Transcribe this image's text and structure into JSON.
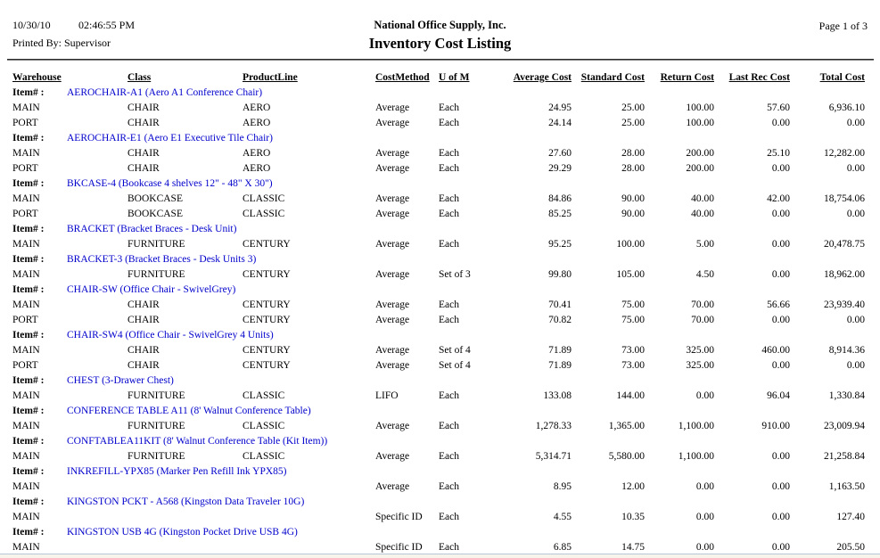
{
  "header": {
    "date": "10/30/10",
    "time": "02:46:55 PM",
    "printed_by": "Printed By: Supervisor",
    "company": "National Office Supply, Inc.",
    "title": "Inventory Cost Listing",
    "page": "Page 1 of 3"
  },
  "colors": {
    "item_link_blue": "#0000CC",
    "divider_gray": "#808080",
    "footer_line": "#b9c6d6",
    "footer_bg": "#f7f4ec"
  },
  "table": {
    "item_label": "Item# :",
    "columns": [
      "Warehouse",
      "Class",
      "ProductLine",
      "CostMethod",
      "U of M",
      "Average Cost",
      "Standard Cost",
      "Return Cost",
      "Last Rec Cost",
      "Total Cost"
    ],
    "groups": [
      {
        "item": "AEROCHAIR-A1 (Aero A1 Conference Chair)",
        "rows": [
          [
            "MAIN",
            "CHAIR",
            "AERO",
            "Average",
            "Each",
            "24.95",
            "25.00",
            "100.00",
            "57.60",
            "6,936.10"
          ],
          [
            "PORT",
            "CHAIR",
            "AERO",
            "Average",
            "Each",
            "24.14",
            "25.00",
            "100.00",
            "0.00",
            "0.00"
          ]
        ]
      },
      {
        "item": "AEROCHAIR-E1 (Aero E1 Executive Tile Chair)",
        "rows": [
          [
            "MAIN",
            "CHAIR",
            "AERO",
            "Average",
            "Each",
            "27.60",
            "28.00",
            "200.00",
            "25.10",
            "12,282.00"
          ],
          [
            "PORT",
            "CHAIR",
            "AERO",
            "Average",
            "Each",
            "29.29",
            "28.00",
            "200.00",
            "0.00",
            "0.00"
          ]
        ]
      },
      {
        "item": "BKCASE-4 (Bookcase 4 shelves 12\" - 48\" X 30\")",
        "rows": [
          [
            "MAIN",
            "BOOKCASE",
            "CLASSIC",
            "Average",
            "Each",
            "84.86",
            "90.00",
            "40.00",
            "42.00",
            "18,754.06"
          ],
          [
            "PORT",
            "BOOKCASE",
            "CLASSIC",
            "Average",
            "Each",
            "85.25",
            "90.00",
            "40.00",
            "0.00",
            "0.00"
          ]
        ]
      },
      {
        "item": "BRACKET (Bracket Braces - Desk Unit)",
        "rows": [
          [
            "MAIN",
            "FURNITURE",
            "CENTURY",
            "Average",
            "Each",
            "95.25",
            "100.00",
            "5.00",
            "0.00",
            "20,478.75"
          ]
        ]
      },
      {
        "item": "BRACKET-3 (Bracket Braces - Desk Units 3)",
        "rows": [
          [
            "MAIN",
            "FURNITURE",
            "CENTURY",
            "Average",
            "Set of 3",
            "99.80",
            "105.00",
            "4.50",
            "0.00",
            "18,962.00"
          ]
        ]
      },
      {
        "item": "CHAIR-SW (Office Chair - SwivelGrey)",
        "rows": [
          [
            "MAIN",
            "CHAIR",
            "CENTURY",
            "Average",
            "Each",
            "70.41",
            "75.00",
            "70.00",
            "56.66",
            "23,939.40"
          ],
          [
            "PORT",
            "CHAIR",
            "CENTURY",
            "Average",
            "Each",
            "70.82",
            "75.00",
            "70.00",
            "0.00",
            "0.00"
          ]
        ]
      },
      {
        "item": "CHAIR-SW4 (Office Chair - SwivelGrey 4 Units)",
        "rows": [
          [
            "MAIN",
            "CHAIR",
            "CENTURY",
            "Average",
            "Set of 4",
            "71.89",
            "73.00",
            "325.00",
            "460.00",
            "8,914.36"
          ],
          [
            "PORT",
            "CHAIR",
            "CENTURY",
            "Average",
            "Set of 4",
            "71.89",
            "73.00",
            "325.00",
            "0.00",
            "0.00"
          ]
        ]
      },
      {
        "item": "CHEST (3-Drawer Chest)",
        "rows": [
          [
            "MAIN",
            "FURNITURE",
            "CLASSIC",
            "LIFO",
            "Each",
            "133.08",
            "144.00",
            "0.00",
            "96.04",
            "1,330.84"
          ]
        ]
      },
      {
        "item": "CONFERENCE TABLE A11 (8' Walnut Conference Table)",
        "rows": [
          [
            "MAIN",
            "FURNITURE",
            "CLASSIC",
            "Average",
            "Each",
            "1,278.33",
            "1,365.00",
            "1,100.00",
            "910.00",
            "23,009.94"
          ]
        ]
      },
      {
        "item": "CONFTABLEA11KIT (8' Walnut Conference Table (Kit Item))",
        "rows": [
          [
            "MAIN",
            "FURNITURE",
            "CLASSIC",
            "Average",
            "Each",
            "5,314.71",
            "5,580.00",
            "1,100.00",
            "0.00",
            "21,258.84"
          ]
        ]
      },
      {
        "item": "INKREFILL-YPX85 (Marker Pen Refill Ink YPX85)",
        "rows": [
          [
            "MAIN",
            "",
            "",
            "Average",
            "Each",
            "8.95",
            "12.00",
            "0.00",
            "0.00",
            "1,163.50"
          ]
        ]
      },
      {
        "item": "KINGSTON PCKT - A568 (Kingston Data Traveler 10G)",
        "rows": [
          [
            "MAIN",
            "",
            "",
            "Specific ID",
            "Each",
            "4.55",
            "10.35",
            "0.00",
            "0.00",
            "127.40"
          ]
        ]
      },
      {
        "item": "KINGSTON USB 4G (Kingston Pocket Drive USB 4G)",
        "rows": [
          [
            "MAIN",
            "",
            "",
            "Specific ID",
            "Each",
            "6.85",
            "14.75",
            "0.00",
            "0.00",
            "205.50"
          ]
        ]
      }
    ]
  }
}
